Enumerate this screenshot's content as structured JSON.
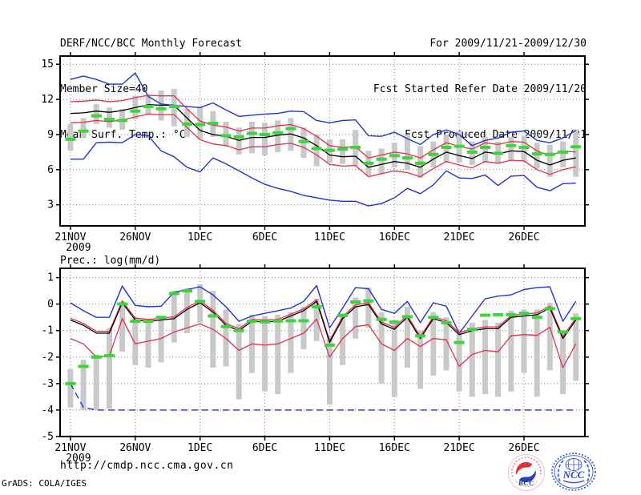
{
  "header": {
    "title": "DERF/NCC/BCC Monthly Forecast",
    "member_size": "Member Size=40",
    "var_label": "Mean Surf. Temp.: °C",
    "for_range": "For 2009/11/21-2009/12/30",
    "refer_date": "Fcst Started Refer Date 2009/11/20",
    "produced_date": "Fcst Produced Date 2009/11/21"
  },
  "footer": {
    "url": "http://cmdp.ncc.cma.gov.cn",
    "grads_credit": "GrADS: COLA/IGES",
    "logos": {
      "bcc": "BCC",
      "ncc": "NCC"
    }
  },
  "colors": {
    "blue": "#2233cc",
    "red": "#e0304a",
    "black": "#000000",
    "green": "#3ed43e",
    "gray_bar": "#c9c9c9",
    "grid": "#7d7d7d",
    "logo_blue": "#3c55cc",
    "logo_red": "#e03030",
    "logo_navy": "#223a8c"
  },
  "chart_data": [
    {
      "type": "line",
      "title": "",
      "ylabel": "",
      "xlabel": "",
      "ylim": [
        1.2,
        15.7
      ],
      "xlim": [
        -0.8,
        39.7
      ],
      "yticks": [
        3,
        6,
        9,
        12,
        15
      ],
      "xtick_labels": [
        "21NOV",
        "26NOV",
        "1DEC",
        "6DEC",
        "11DEC",
        "16DEC",
        "21DEC",
        "26DEC"
      ],
      "xtick_days": [
        0,
        5,
        10,
        15,
        20,
        25,
        30,
        35
      ],
      "x_year_label": "2009",
      "n_points": 40,
      "series": [
        {
          "name": "ensemble-max",
          "color_key": "blue",
          "dash": "",
          "values": [
            13.7,
            14.0,
            13.7,
            13.3,
            13.3,
            14.25,
            12.25,
            11.6,
            11.5,
            11.4,
            11.3,
            11.7,
            11.1,
            10.55,
            10.65,
            10.75,
            10.8,
            11.0,
            10.95,
            10.2,
            10.0,
            10.2,
            10.25,
            8.9,
            8.85,
            9.2,
            8.65,
            8.15,
            9.0,
            9.4,
            9.0,
            8.05,
            8.5,
            8.7,
            9.2,
            9.3,
            8.5,
            8.3,
            8.7,
            9.35
          ]
        },
        {
          "name": "upper-spread",
          "color_key": "red",
          "dash": "",
          "values": [
            11.8,
            11.85,
            11.95,
            11.8,
            11.9,
            12.15,
            12.35,
            12.3,
            12.3,
            11.2,
            10.15,
            9.8,
            9.65,
            9.3,
            9.55,
            9.55,
            9.75,
            9.85,
            9.5,
            8.85,
            8.05,
            7.9,
            7.95,
            7.0,
            7.25,
            7.5,
            7.35,
            7.0,
            7.7,
            8.3,
            8.0,
            7.75,
            8.3,
            8.15,
            8.4,
            8.35,
            7.6,
            7.2,
            7.6,
            7.5
          ]
        },
        {
          "name": "lower-spread",
          "color_key": "red",
          "dash": "",
          "values": [
            10.0,
            10.05,
            10.2,
            10.1,
            10.25,
            10.5,
            10.75,
            10.7,
            10.7,
            9.6,
            8.55,
            8.2,
            8.05,
            7.7,
            7.95,
            7.95,
            8.15,
            8.25,
            7.9,
            7.25,
            6.45,
            6.3,
            6.35,
            5.4,
            5.65,
            5.9,
            5.75,
            5.4,
            6.1,
            6.7,
            6.4,
            6.15,
            6.7,
            6.55,
            6.8,
            6.75,
            6.0,
            5.6,
            6.0,
            6.25
          ]
        },
        {
          "name": "ensemble-min",
          "color_key": "blue",
          "dash": "",
          "values": [
            6.9,
            6.9,
            8.3,
            8.35,
            8.3,
            9.0,
            8.9,
            7.6,
            7.1,
            6.2,
            5.8,
            7.0,
            6.5,
            5.9,
            5.3,
            4.75,
            4.4,
            4.15,
            3.8,
            3.6,
            3.4,
            3.3,
            3.3,
            2.9,
            3.1,
            3.6,
            4.4,
            3.95,
            4.7,
            5.9,
            5.3,
            5.25,
            5.55,
            4.65,
            5.45,
            5.5,
            4.5,
            4.2,
            4.8,
            4.85
          ]
        },
        {
          "name": "ensemble-mean",
          "color_key": "black",
          "dash": "",
          "values": [
            10.8,
            10.85,
            11.0,
            10.9,
            11.05,
            11.3,
            11.55,
            11.5,
            11.5,
            10.4,
            9.35,
            9.0,
            8.85,
            8.5,
            8.75,
            8.75,
            8.95,
            9.05,
            8.7,
            8.05,
            7.25,
            7.1,
            7.15,
            6.2,
            6.45,
            6.7,
            6.55,
            6.2,
            6.9,
            7.5,
            7.2,
            6.95,
            7.5,
            7.35,
            7.6,
            7.55,
            6.8,
            6.4,
            6.8,
            7.0
          ]
        }
      ],
      "obs": {
        "name": "observation",
        "color_key": "green",
        "values": [
          8.6,
          9.3,
          10.6,
          10.3,
          10.2,
          11.0,
          11.4,
          11.2,
          11.4,
          9.9,
          9.85,
          9.95,
          8.9,
          8.8,
          9.1,
          9.0,
          9.15,
          9.5,
          8.4,
          7.8,
          7.65,
          7.75,
          7.9,
          6.55,
          6.9,
          7.2,
          7.0,
          6.55,
          7.3,
          7.9,
          8.0,
          7.5,
          7.9,
          7.4,
          8.05,
          7.9,
          7.35,
          7.3,
          7.5,
          7.95
        ]
      },
      "bars": {
        "color_key": "gray_bar",
        "top": [
          9.9,
          10.4,
          11.6,
          11.3,
          11.2,
          12.3,
          12.4,
          12.75,
          12.9,
          11.2,
          11.4,
          11.0,
          10.1,
          9.6,
          10.1,
          10.0,
          10.2,
          10.4,
          9.6,
          9.0,
          8.6,
          8.6,
          9.4,
          7.6,
          7.8,
          8.3,
          9.0,
          8.0,
          8.4,
          9.0,
          9.3,
          8.4,
          8.8,
          8.4,
          8.8,
          8.9,
          8.3,
          8.1,
          8.4,
          9.45
        ],
        "bottom": [
          7.6,
          8.7,
          9.9,
          9.6,
          9.4,
          10.3,
          10.7,
          10.2,
          9.7,
          8.8,
          8.6,
          8.8,
          8.0,
          7.3,
          7.4,
          7.2,
          7.5,
          7.6,
          7.0,
          6.3,
          6.6,
          6.5,
          6.3,
          5.5,
          5.6,
          6.2,
          6.0,
          5.3,
          6.2,
          6.6,
          6.6,
          6.4,
          6.6,
          6.5,
          6.8,
          6.7,
          6.1,
          5.4,
          6.2,
          5.4
        ]
      }
    },
    {
      "type": "line",
      "title": "Prec.: log(mm/d)",
      "ylabel": "",
      "xlabel": "",
      "ylim": [
        -5,
        1.35
      ],
      "xlim": [
        -0.8,
        39.7
      ],
      "yticks": [
        1,
        0,
        -1,
        -2,
        -3,
        -4,
        -5
      ],
      "xtick_labels": [
        "21NOV",
        "26NOV",
        "1DEC",
        "6DEC",
        "11DEC",
        "16DEC",
        "21DEC",
        "26DEC"
      ],
      "xtick_days": [
        0,
        5,
        10,
        15,
        20,
        25,
        30,
        35
      ],
      "x_year_label": "2009",
      "n_points": 40,
      "series": [
        {
          "name": "ensemble-max",
          "color_key": "blue",
          "dash": "",
          "values": [
            0.05,
            -0.25,
            -0.5,
            -0.5,
            0.68,
            -0.05,
            -0.1,
            -0.08,
            0.45,
            0.55,
            0.65,
            0.35,
            -0.1,
            -0.65,
            -0.45,
            -0.35,
            -0.25,
            -0.15,
            0.1,
            0.7,
            -0.9,
            -0.15,
            0.62,
            0.58,
            -0.2,
            -0.35,
            0.1,
            -0.7,
            0.05,
            -0.08,
            -1.1,
            -0.45,
            0.2,
            0.3,
            0.35,
            0.55,
            0.62,
            0.65,
            -0.65,
            0.1
          ]
        },
        {
          "name": "upper-spread",
          "color_key": "red",
          "dash": "",
          "values": [
            -0.53,
            -0.73,
            -1.03,
            -1.03,
            0.12,
            -0.53,
            -0.58,
            -0.53,
            -0.48,
            -0.13,
            0.12,
            -0.23,
            -0.73,
            -0.93,
            -0.58,
            -0.6,
            -0.58,
            -0.38,
            -0.18,
            0.17,
            -1.38,
            -0.48,
            -0.03,
            0.05,
            -0.68,
            -0.88,
            -0.43,
            -1.23,
            -0.48,
            -0.63,
            -1.08,
            -0.93,
            -0.86,
            -0.86,
            -0.43,
            -0.38,
            -0.33,
            -0.08,
            -1.23,
            -0.53
          ]
        },
        {
          "name": "lower-spread",
          "color_key": "red",
          "dash": "",
          "values": [
            -1.3,
            -1.5,
            -2.0,
            -1.95,
            -0.55,
            -1.5,
            -1.4,
            -1.3,
            -1.05,
            -0.9,
            -0.75,
            -0.95,
            -1.3,
            -1.75,
            -1.5,
            -1.55,
            -1.5,
            -1.3,
            -1.1,
            -0.57,
            -2.0,
            -1.3,
            -0.85,
            -0.78,
            -1.5,
            -1.75,
            -1.3,
            -1.6,
            -1.3,
            -1.35,
            -2.35,
            -1.9,
            -1.75,
            -1.8,
            -1.2,
            -1.15,
            -1.18,
            -0.88,
            -2.4,
            -1.5
          ]
        },
        {
          "name": "ensemble-min",
          "color_key": "blue",
          "dash": "8 5",
          "values": [
            -3.0,
            -3.9,
            -4,
            -4,
            -4,
            -4,
            -4,
            -4,
            -4,
            -4,
            -4,
            -4,
            -4,
            -4,
            -4,
            -4,
            -4,
            -4,
            -4,
            -4,
            -4,
            -4,
            -4,
            -4,
            -4,
            -4,
            -4,
            -4,
            -4,
            -4,
            -4,
            -4,
            -4,
            -4,
            -4,
            -4,
            -4,
            -4,
            -4,
            -4
          ]
        },
        {
          "name": "ensemble-mean",
          "color_key": "black",
          "dash": "",
          "values": [
            -0.6,
            -0.8,
            -1.1,
            -1.1,
            0.05,
            -0.6,
            -0.65,
            -0.6,
            -0.55,
            -0.2,
            0.05,
            -0.3,
            -0.8,
            -1.0,
            -0.65,
            -0.67,
            -0.65,
            -0.45,
            -0.25,
            0.1,
            -1.45,
            -0.55,
            -0.1,
            -0.02,
            -0.75,
            -0.95,
            -0.5,
            -1.3,
            -0.55,
            -0.7,
            -1.15,
            -1.0,
            -0.93,
            -0.93,
            -0.5,
            -0.45,
            -0.4,
            -0.15,
            -1.3,
            -0.6
          ]
        }
      ],
      "obs": {
        "name": "observation",
        "color_key": "green",
        "values": [
          -3.0,
          -2.35,
          -2.0,
          -1.95,
          0.0,
          -0.65,
          -0.65,
          -0.5,
          0.4,
          0.5,
          0.1,
          -0.45,
          -0.85,
          -1.0,
          -0.65,
          -0.67,
          -0.64,
          -0.63,
          -0.63,
          -0.1,
          -1.55,
          -0.43,
          0.08,
          0.12,
          -0.58,
          -0.68,
          -0.48,
          -1.2,
          -0.5,
          -0.7,
          -1.45,
          -0.95,
          -0.42,
          -0.4,
          -0.4,
          -0.35,
          -0.5,
          -0.17,
          -1.05,
          -0.55
        ]
      },
      "bars": {
        "color_key": "gray_bar",
        "top": [
          -2.45,
          -2.1,
          -1.9,
          -0.9,
          0.1,
          -0.5,
          -0.6,
          -0.5,
          0.5,
          0.6,
          0.75,
          0.5,
          -0.2,
          -0.75,
          -0.4,
          -0.45,
          -0.4,
          -0.3,
          -0.1,
          0.2,
          -1.2,
          -0.35,
          0.25,
          0.62,
          -0.3,
          -0.6,
          -0.1,
          -1.0,
          -0.3,
          -0.5,
          -0.95,
          -0.7,
          -0.6,
          -0.7,
          -0.25,
          -0.2,
          -0.2,
          0.05,
          -1.0,
          -0.35
        ],
        "bottom": [
          -3.9,
          -4.0,
          -4.0,
          -3.95,
          -1.8,
          -2.3,
          -2.4,
          -2.2,
          -1.45,
          -1.1,
          -0.7,
          -2.4,
          -2.35,
          -3.6,
          -2.6,
          -3.3,
          -3.4,
          -2.6,
          -1.7,
          -1.4,
          -3.8,
          -2.3,
          -1.3,
          -0.9,
          -3.0,
          -3.5,
          -2.4,
          -3.2,
          -2.7,
          -2.5,
          -3.3,
          -3.5,
          -3.4,
          -3.5,
          -3.3,
          -2.6,
          -3.5,
          -2.5,
          -3.4,
          -2.9
        ]
      }
    }
  ]
}
